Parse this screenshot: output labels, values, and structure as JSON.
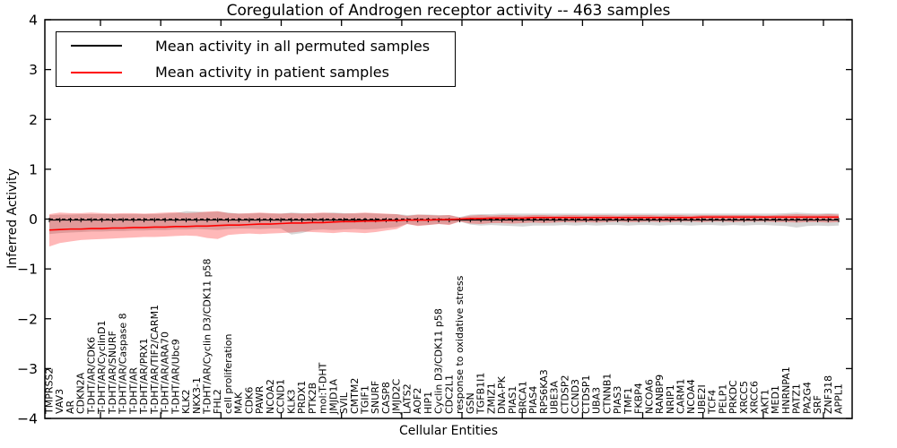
{
  "title": "Coregulation of Androgen receptor activity -- 463 samples",
  "legend": {
    "items": [
      {
        "label": "Mean activity in all permuted samples",
        "color": "#000000"
      },
      {
        "label": "Mean activity in patient samples",
        "color": "#ff0000"
      }
    ]
  },
  "chart_data": {
    "type": "line",
    "title": "Coregulation of Androgen receptor activity -- 463 samples",
    "xlabel": "Cellular Entities",
    "ylabel": "Inferred Activity",
    "ylim": [
      -4,
      4
    ],
    "yticks": [
      -4,
      -3,
      -2,
      -1,
      0,
      1,
      2,
      3,
      4
    ],
    "grid": false,
    "legend_position": "upper left",
    "zero_line": {
      "style": "dashed",
      "color": "#000000"
    },
    "colors": {
      "permuted_line": "#000000",
      "patient_line": "#ff0000",
      "permuted_band": "rgba(0,0,0,0.16)",
      "patient_band": "rgba(255,0,0,0.28)"
    },
    "categories": [
      "TMPRSS2",
      "VAV3",
      "AR",
      "CDKN2A",
      "T-DHT/AR/CDK6",
      "T-DHT/AR/CyclinD1",
      "T-DHT/AR/SNURF",
      "T-DHT/AR/Caspase 8",
      "T-DHT/AR",
      "T-DHT/AR/PRX1",
      "T-DHT/AR/TIF2/CARM1",
      "T-DHT/AR/ARA70",
      "T-DHT/AR/Ubc9",
      "KLK2",
      "NKX3-1",
      "T-DHT/AR/Cyclin D3/CDK11 p58",
      "FHL2",
      "cell proliferation",
      "MAK",
      "CDK6",
      "PAWR",
      "NCOA2",
      "CCND1",
      "KLK3",
      "PRDX1",
      "PTK2B",
      "mol:T-DHT",
      "JMJD1A",
      "SVIL",
      "CMTM2",
      "TGIF1",
      "SNURF",
      "CASP8",
      "JMJD2C",
      "LATS2",
      "AOF2",
      "HIP1",
      "Cyclin D3/CDK11 p58",
      "CDC2L1",
      "response to oxidative stress",
      "GSN",
      "TGFB1I1",
      "ZMIZ1",
      "DNA-PK",
      "PIAS1",
      "BRCA1",
      "PIAS4",
      "RPS6KA3",
      "UBE3A",
      "CTDSP2",
      "CCND3",
      "CTDSP1",
      "UBA3",
      "CTNNB1",
      "PIAS3",
      "TMF1",
      "FKBP4",
      "NCOA6",
      "RANBP9",
      "NRIP1",
      "CARM1",
      "NCOA4",
      "UBE2I",
      "TCF4",
      "PELP1",
      "PRKDC",
      "XRCC5",
      "XRCC6",
      "AKT1",
      "MED1",
      "HNRNPA1",
      "PATZ1",
      "PA2G4",
      "SRF",
      "ZNF318",
      "APPL1"
    ],
    "series": [
      {
        "name": "Mean activity in all permuted samples",
        "color": "#000000",
        "values": [
          -0.02,
          -0.02,
          -0.02,
          -0.02,
          -0.02,
          -0.02,
          -0.02,
          -0.02,
          -0.02,
          -0.02,
          -0.02,
          -0.02,
          -0.02,
          -0.02,
          -0.02,
          -0.02,
          -0.02,
          -0.02,
          -0.02,
          -0.02,
          -0.02,
          -0.02,
          -0.02,
          -0.02,
          -0.02,
          -0.02,
          -0.02,
          -0.02,
          -0.02,
          -0.02,
          -0.02,
          -0.02,
          -0.02,
          -0.02,
          -0.02,
          -0.02,
          -0.02,
          -0.02,
          -0.02,
          -0.02,
          -0.02,
          -0.02,
          -0.02,
          -0.02,
          -0.02,
          -0.02,
          -0.02,
          -0.02,
          -0.02,
          -0.02,
          -0.02,
          -0.02,
          -0.02,
          -0.02,
          -0.02,
          -0.02,
          -0.02,
          -0.02,
          -0.02,
          -0.02,
          -0.02,
          -0.02,
          -0.02,
          -0.02,
          -0.02,
          -0.02,
          -0.02,
          -0.02,
          -0.02,
          -0.02,
          -0.02,
          -0.02,
          -0.02,
          -0.02,
          -0.02,
          -0.02
        ]
      },
      {
        "name": "Mean activity in patient samples",
        "color": "#ff0000",
        "values": [
          -0.22,
          -0.21,
          -0.2,
          -0.2,
          -0.19,
          -0.19,
          -0.18,
          -0.18,
          -0.17,
          -0.17,
          -0.16,
          -0.16,
          -0.15,
          -0.15,
          -0.14,
          -0.14,
          -0.13,
          -0.12,
          -0.12,
          -0.11,
          -0.1,
          -0.1,
          -0.09,
          -0.08,
          -0.08,
          -0.07,
          -0.07,
          -0.06,
          -0.05,
          -0.05,
          -0.04,
          -0.04,
          -0.03,
          -0.03,
          -0.02,
          -0.02,
          -0.02,
          -0.01,
          -0.01,
          0.0,
          0.01,
          0.01,
          0.02,
          0.02,
          0.02,
          0.02,
          0.03,
          0.03,
          0.03,
          0.03,
          0.03,
          0.03,
          0.03,
          0.03,
          0.03,
          0.03,
          0.03,
          0.03,
          0.03,
          0.03,
          0.03,
          0.03,
          0.04,
          0.04,
          0.04,
          0.04,
          0.04,
          0.04,
          0.04,
          0.04,
          0.04,
          0.04,
          0.04,
          0.04,
          0.04,
          0.04
        ]
      }
    ],
    "bands": [
      {
        "name": "permuted std band",
        "color": "rgba(0,0,0,0.16)",
        "upper": [
          0.08,
          0.09,
          0.09,
          0.1,
          0.1,
          0.1,
          0.1,
          0.1,
          0.1,
          0.1,
          0.1,
          0.11,
          0.12,
          0.16,
          0.15,
          0.14,
          0.15,
          0.13,
          0.11,
          0.11,
          0.12,
          0.11,
          0.11,
          0.13,
          0.12,
          0.11,
          0.12,
          0.13,
          0.12,
          0.11,
          0.12,
          0.11,
          0.1,
          0.1,
          0.08,
          0.09,
          0.09,
          0.08,
          0.08,
          0.04,
          0.09,
          0.1,
          0.1,
          0.11,
          0.11,
          0.11,
          0.11,
          0.11,
          0.11,
          0.11,
          0.11,
          0.11,
          0.11,
          0.11,
          0.11,
          0.11,
          0.11,
          0.11,
          0.11,
          0.11,
          0.11,
          0.11,
          0.11,
          0.11,
          0.11,
          0.11,
          0.11,
          0.11,
          0.11,
          0.11,
          0.12,
          0.13,
          0.12,
          0.11,
          0.12,
          0.11
        ],
        "lower": [
          -0.3,
          -0.28,
          -0.27,
          -0.26,
          -0.25,
          -0.25,
          -0.24,
          -0.24,
          -0.23,
          -0.23,
          -0.22,
          -0.22,
          -0.21,
          -0.21,
          -0.2,
          -0.21,
          -0.22,
          -0.2,
          -0.19,
          -0.19,
          -0.2,
          -0.19,
          -0.19,
          -0.31,
          -0.28,
          -0.22,
          -0.21,
          -0.22,
          -0.21,
          -0.2,
          -0.21,
          -0.2,
          -0.18,
          -0.16,
          -0.1,
          -0.13,
          -0.12,
          -0.1,
          -0.11,
          -0.05,
          -0.11,
          -0.13,
          -0.12,
          -0.13,
          -0.14,
          -0.15,
          -0.13,
          -0.13,
          -0.13,
          -0.12,
          -0.13,
          -0.12,
          -0.13,
          -0.12,
          -0.12,
          -0.13,
          -0.12,
          -0.12,
          -0.13,
          -0.12,
          -0.12,
          -0.13,
          -0.12,
          -0.12,
          -0.13,
          -0.12,
          -0.13,
          -0.12,
          -0.12,
          -0.13,
          -0.14,
          -0.17,
          -0.14,
          -0.13,
          -0.14,
          -0.13
        ]
      },
      {
        "name": "patient std band",
        "color": "rgba(255,0,0,0.28)",
        "upper": [
          0.1,
          0.13,
          0.12,
          0.12,
          0.13,
          0.12,
          0.11,
          0.12,
          0.12,
          0.11,
          0.12,
          0.13,
          0.14,
          0.12,
          0.13,
          0.15,
          0.16,
          0.12,
          0.11,
          0.12,
          0.13,
          0.12,
          0.11,
          0.12,
          0.11,
          0.12,
          0.13,
          0.12,
          0.11,
          0.12,
          0.13,
          0.12,
          0.11,
          0.1,
          0.06,
          0.09,
          0.08,
          0.07,
          0.08,
          0.03,
          0.07,
          0.08,
          0.07,
          0.08,
          0.08,
          0.07,
          0.08,
          0.08,
          0.07,
          0.08,
          0.08,
          0.07,
          0.08,
          0.08,
          0.07,
          0.08,
          0.08,
          0.08,
          0.07,
          0.08,
          0.08,
          0.07,
          0.08,
          0.08,
          0.08,
          0.08,
          0.08,
          0.08,
          0.07,
          0.08,
          0.09,
          0.1,
          0.09,
          0.09,
          0.1,
          0.09
        ],
        "lower": [
          -0.55,
          -0.48,
          -0.45,
          -0.42,
          -0.41,
          -0.4,
          -0.39,
          -0.38,
          -0.37,
          -0.36,
          -0.36,
          -0.35,
          -0.34,
          -0.33,
          -0.34,
          -0.38,
          -0.4,
          -0.32,
          -0.3,
          -0.29,
          -0.3,
          -0.29,
          -0.28,
          -0.27,
          -0.25,
          -0.26,
          -0.27,
          -0.28,
          -0.26,
          -0.27,
          -0.28,
          -0.26,
          -0.23,
          -0.2,
          -0.1,
          -0.14,
          -0.12,
          -0.1,
          -0.12,
          -0.05,
          -0.09,
          -0.1,
          -0.08,
          -0.08,
          -0.09,
          -0.08,
          -0.07,
          -0.08,
          -0.07,
          -0.06,
          -0.07,
          -0.06,
          -0.07,
          -0.06,
          -0.05,
          -0.06,
          -0.06,
          -0.05,
          -0.06,
          -0.06,
          -0.05,
          -0.05,
          -0.06,
          -0.05,
          -0.05,
          -0.06,
          -0.05,
          -0.05,
          -0.05,
          -0.06,
          -0.06,
          -0.07,
          -0.06,
          -0.06,
          -0.07,
          -0.06
        ]
      }
    ]
  }
}
